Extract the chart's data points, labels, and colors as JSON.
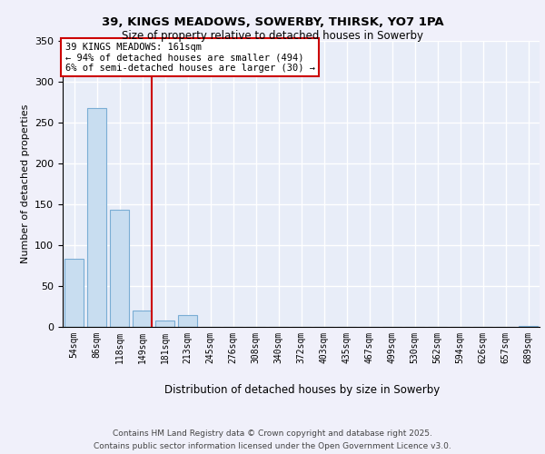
{
  "title1": "39, KINGS MEADOWS, SOWERBY, THIRSK, YO7 1PA",
  "title2": "Size of property relative to detached houses in Sowerby",
  "xlabel": "Distribution of detached houses by size in Sowerby",
  "ylabel": "Number of detached properties",
  "bins": [
    "54sqm",
    "86sqm",
    "118sqm",
    "149sqm",
    "181sqm",
    "213sqm",
    "245sqm",
    "276sqm",
    "308sqm",
    "340sqm",
    "372sqm",
    "403sqm",
    "435sqm",
    "467sqm",
    "499sqm",
    "530sqm",
    "562sqm",
    "594sqm",
    "626sqm",
    "657sqm",
    "689sqm"
  ],
  "values": [
    83,
    268,
    143,
    20,
    8,
    15,
    0,
    0,
    0,
    0,
    0,
    0,
    0,
    0,
    0,
    0,
    0,
    0,
    0,
    0,
    1
  ],
  "bar_color": "#c8ddf0",
  "bar_edgecolor": "#7aadd4",
  "vline_color": "#cc0000",
  "vline_x": 3.42,
  "ylim_max": 350,
  "yticks": [
    0,
    50,
    100,
    150,
    200,
    250,
    300,
    350
  ],
  "annotation_line1": "39 KINGS MEADOWS: 161sqm",
  "annotation_line2": "← 94% of detached houses are smaller (494)",
  "annotation_line3": "6% of semi-detached houses are larger (30) →",
  "background_color": "#e8edf8",
  "grid_color": "#ffffff",
  "footer1": "Contains HM Land Registry data © Crown copyright and database right 2025.",
  "footer2": "Contains public sector information licensed under the Open Government Licence v3.0."
}
